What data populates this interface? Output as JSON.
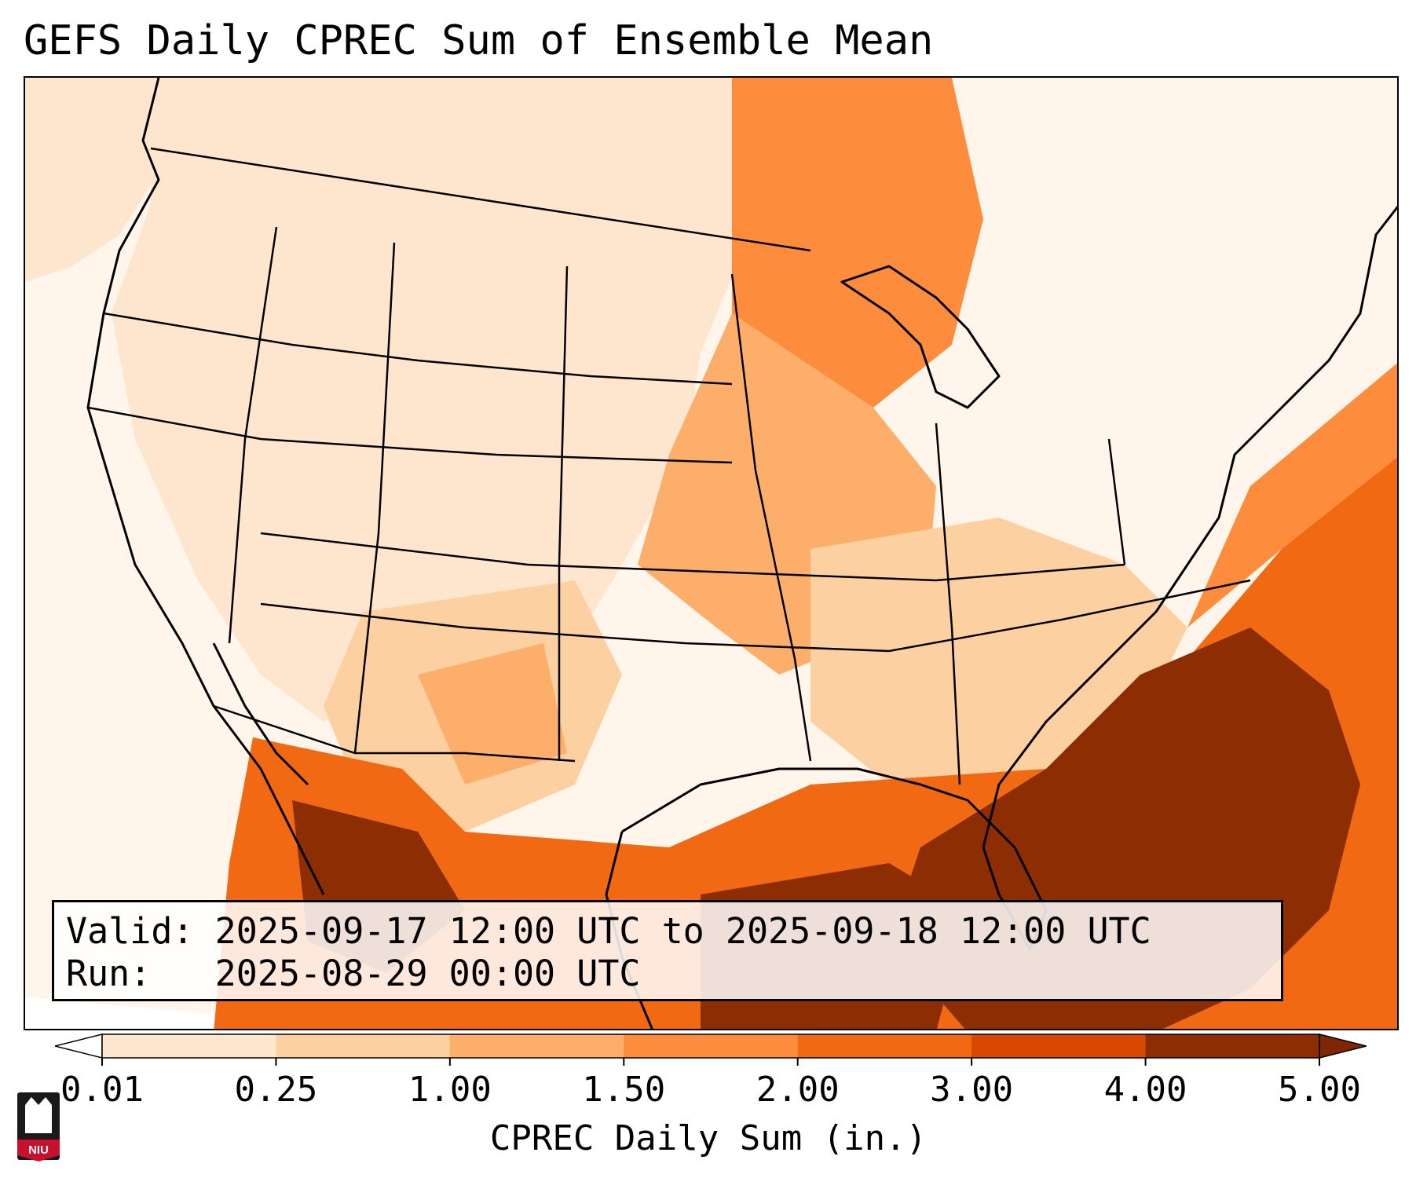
{
  "title": "GEFS Daily CPREC Sum of Ensemble Mean",
  "info": {
    "valid_label": "Valid:",
    "valid_value": "2025-09-17 12:00 UTC to 2025-09-18 12:00 UTC",
    "run_label": "Run:",
    "run_value": "2025-08-29 00:00 UTC"
  },
  "colorbar": {
    "label": "CPREC Daily Sum (in.)",
    "ticks": [
      "0.01",
      "0.25",
      "1.00",
      "1.50",
      "2.00",
      "3.00",
      "4.00",
      "5.00"
    ],
    "colors": [
      "#fff5eb",
      "#fee6ce",
      "#fdd0a2",
      "#fdae6b",
      "#fd8d3c",
      "#f16913",
      "#d94801",
      "#8c2d04"
    ],
    "under_color": "#ffffff",
    "over_color": "#7f2704"
  },
  "logo": {
    "text": "NIU",
    "color": "#c8102e"
  },
  "map_regions": {
    "pacific_west": "#fff5eb",
    "west_interior": "#fee6ce",
    "southwest_mountains": "#fdd0a2",
    "upper_midwest": "#fd8d3c",
    "mississippi_valley": "#fdae6b",
    "gulf_coast": "#f16913",
    "florida_atlantic": "#8c2d04"
  }
}
